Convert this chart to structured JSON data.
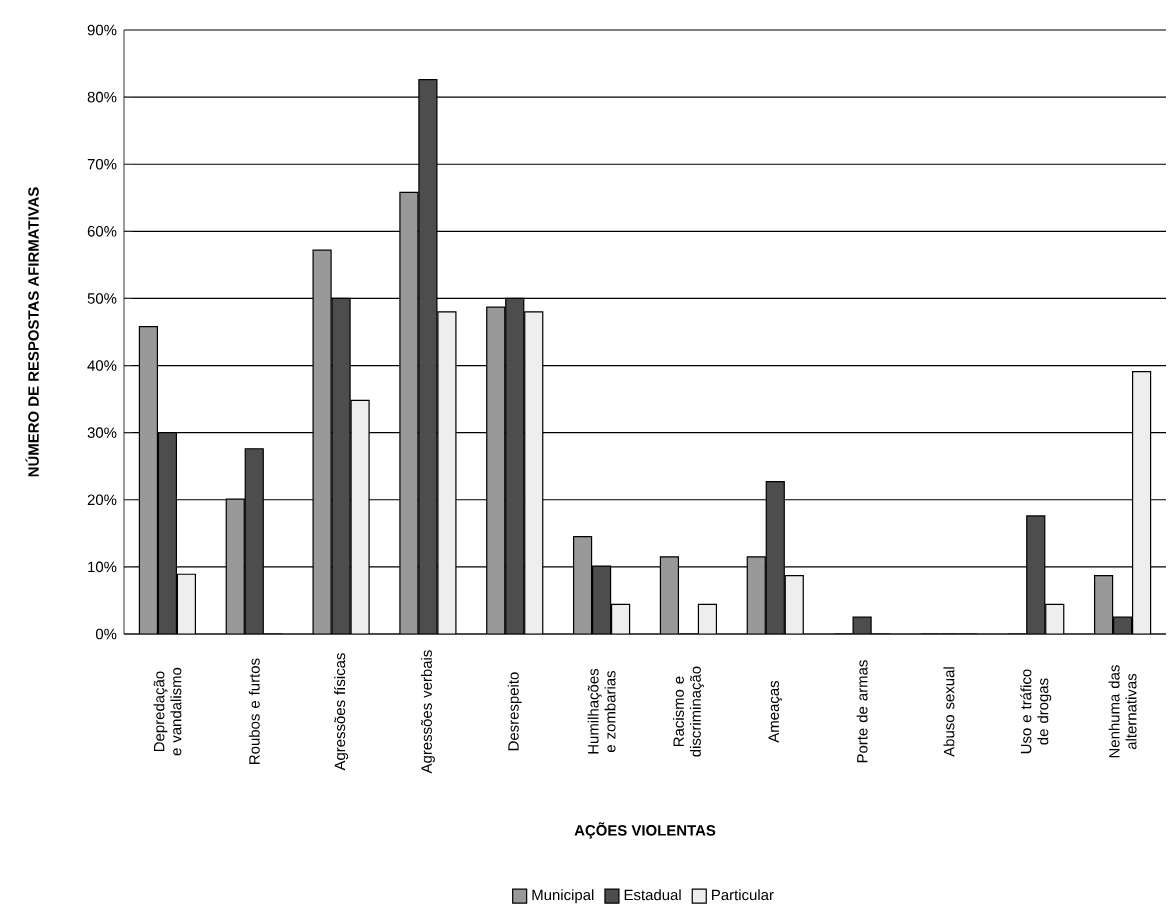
{
  "chart_data": {
    "type": "bar",
    "xlabel": "AÇÕES VIOLENTAS",
    "ylabel": "NÚMERO DE RESPOSTAS AFIRMATIVAS",
    "categories": [
      "Depredação e vandalismo",
      "Roubos e furtos",
      "Agressões físicas",
      "Agressões verbais",
      "Desrespeito",
      "Humilhações e zombarias",
      "Racismo e discriminação",
      "Ameaças",
      "Porte de armas",
      "Abuso sexual",
      "Uso e tráfico de drogas",
      "Nenhuma das alternativas"
    ],
    "series": [
      {
        "name": "Municipal",
        "color": "#999999",
        "values": [
          45.8,
          20.1,
          57.2,
          65.8,
          48.7,
          14.5,
          11.5,
          11.5,
          0,
          0,
          0,
          8.7
        ]
      },
      {
        "name": "Estadual",
        "color": "#4d4d4d",
        "values": [
          30,
          27.6,
          50,
          82.6,
          50,
          10.1,
          0,
          22.7,
          2.5,
          0,
          17.6,
          2.5
        ]
      },
      {
        "name": "Particular",
        "color": "#eeeeee",
        "values": [
          8.9,
          0,
          34.8,
          48,
          48,
          4.4,
          4.4,
          8.7,
          0,
          0,
          4.4,
          39.1
        ]
      }
    ],
    "ylim": [
      0,
      90
    ],
    "yticks": [
      {
        "value": 0,
        "label": "0%"
      },
      {
        "value": 10,
        "label": "10%"
      },
      {
        "value": 20,
        "label": "20%"
      },
      {
        "value": 30,
        "label": "30%"
      },
      {
        "value": 40,
        "label": "40%"
      },
      {
        "value": 50,
        "label": "50%"
      },
      {
        "value": 60,
        "label": "60%"
      },
      {
        "value": 70,
        "label": "70%"
      },
      {
        "value": 80,
        "label": "80%"
      },
      {
        "value": 90,
        "label": "90%"
      }
    ],
    "grid": "y",
    "legend": "bottom"
  }
}
